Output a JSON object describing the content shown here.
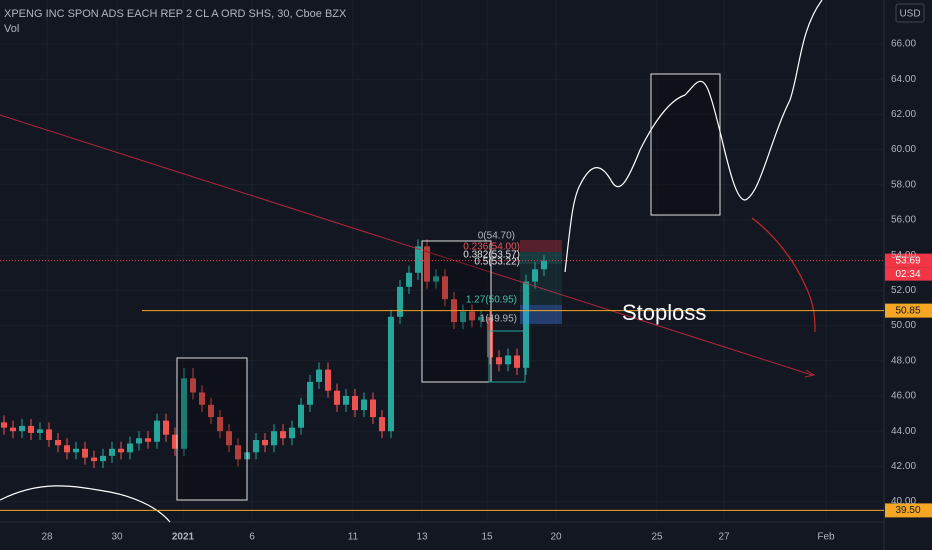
{
  "header": {
    "title": "XPENG INC SPON ADS EACH REP 2 CL A ORD SHS, 30, Cboe BZX",
    "indicator": "Vol",
    "currency": "USD"
  },
  "chart_data": {
    "type": "candlestick",
    "up_color": "#26a69a",
    "down_color": "#ef5350",
    "ylim": [
      38.84,
      68.5
    ],
    "yticks": [
      {
        "value": 40,
        "label": "40.00"
      },
      {
        "value": 42,
        "label": "42.00"
      },
      {
        "value": 44,
        "label": "44.00"
      },
      {
        "value": 46,
        "label": "46.00"
      },
      {
        "value": 48,
        "label": "48.00"
      },
      {
        "value": 50,
        "label": "50.00"
      },
      {
        "value": 52,
        "label": "52.00"
      },
      {
        "value": 54,
        "label": "54.00"
      },
      {
        "value": 56,
        "label": "56.00"
      },
      {
        "value": 58,
        "label": "58.00"
      },
      {
        "value": 60,
        "label": "60.00"
      },
      {
        "value": 62,
        "label": "62.00"
      },
      {
        "value": 64,
        "label": "64.00"
      },
      {
        "value": 66,
        "label": "66.00"
      }
    ],
    "x_labels": [
      "28",
      "30",
      "2021",
      "6",
      "11",
      "13",
      "15",
      "20",
      "25",
      "27",
      "Feb"
    ],
    "candles": [
      [
        44.5,
        44.9,
        43.8,
        44.2
      ],
      [
        44.2,
        44.6,
        43.6,
        44.0
      ],
      [
        44.0,
        44.7,
        43.6,
        44.3
      ],
      [
        44.3,
        44.7,
        43.5,
        43.9
      ],
      [
        43.9,
        44.5,
        43.5,
        44.1
      ],
      [
        44.1,
        44.5,
        43.1,
        43.5
      ],
      [
        43.5,
        43.9,
        42.8,
        43.2
      ],
      [
        43.2,
        43.6,
        42.4,
        42.8
      ],
      [
        42.8,
        43.4,
        42.4,
        43.0
      ],
      [
        43.0,
        43.4,
        42.1,
        42.5
      ],
      [
        42.5,
        42.9,
        41.9,
        42.3
      ],
      [
        42.3,
        43.0,
        41.9,
        42.6
      ],
      [
        42.6,
        43.4,
        42.2,
        43.0
      ],
      [
        43.0,
        43.4,
        42.4,
        42.8
      ],
      [
        42.8,
        43.7,
        42.4,
        43.3
      ],
      [
        43.3,
        44.0,
        42.9,
        43.6
      ],
      [
        43.6,
        44.0,
        43.0,
        43.4
      ],
      [
        43.4,
        45.0,
        43.0,
        44.6
      ],
      [
        44.6,
        45.0,
        43.4,
        43.8
      ],
      [
        43.8,
        44.2,
        42.6,
        43.0
      ],
      [
        43.0,
        47.6,
        42.6,
        47.0
      ],
      [
        47.0,
        47.6,
        45.8,
        46.2
      ],
      [
        46.2,
        46.6,
        45.1,
        45.5
      ],
      [
        45.5,
        45.9,
        44.4,
        44.8
      ],
      [
        44.8,
        45.2,
        43.6,
        44.0
      ],
      [
        44.0,
        44.4,
        42.8,
        43.2
      ],
      [
        43.2,
        43.6,
        42.0,
        42.4
      ],
      [
        42.4,
        43.2,
        42.0,
        42.8
      ],
      [
        42.8,
        43.9,
        42.4,
        43.5
      ],
      [
        43.5,
        43.9,
        42.8,
        43.2
      ],
      [
        43.2,
        44.4,
        42.8,
        44.0
      ],
      [
        44.0,
        44.4,
        43.2,
        43.6
      ],
      [
        43.6,
        44.6,
        43.2,
        44.2
      ],
      [
        44.2,
        45.9,
        43.8,
        45.5
      ],
      [
        45.5,
        47.2,
        45.1,
        46.8
      ],
      [
        46.8,
        47.9,
        46.4,
        47.5
      ],
      [
        47.5,
        47.9,
        45.9,
        46.3
      ],
      [
        46.3,
        46.7,
        45.1,
        45.5
      ],
      [
        45.5,
        46.4,
        45.1,
        46.0
      ],
      [
        46.0,
        46.4,
        44.8,
        45.2
      ],
      [
        45.2,
        46.2,
        44.8,
        45.8
      ],
      [
        45.8,
        46.2,
        44.4,
        44.8
      ],
      [
        44.8,
        45.2,
        43.6,
        44.0
      ],
      [
        44.0,
        50.9,
        43.6,
        50.5
      ],
      [
        50.5,
        52.6,
        50.1,
        52.2
      ],
      [
        52.2,
        53.4,
        51.8,
        53.0
      ],
      [
        53.0,
        54.9,
        52.6,
        54.5
      ],
      [
        54.5,
        54.9,
        52.1,
        52.5
      ],
      [
        52.5,
        53.2,
        52.1,
        52.8
      ],
      [
        52.8,
        53.2,
        51.1,
        51.5
      ],
      [
        51.5,
        51.9,
        49.8,
        50.2
      ],
      [
        50.2,
        51.2,
        49.8,
        50.8
      ],
      [
        50.8,
        51.2,
        49.9,
        50.3
      ],
      [
        50.3,
        50.9,
        49.9,
        50.5
      ],
      [
        50.5,
        50.9,
        47.8,
        48.2
      ],
      [
        48.2,
        48.6,
        47.4,
        47.8
      ],
      [
        47.8,
        48.7,
        47.4,
        48.3
      ],
      [
        48.3,
        48.7,
        47.2,
        47.6
      ],
      [
        47.6,
        52.9,
        47.2,
        52.5
      ],
      [
        52.5,
        53.6,
        52.1,
        53.2
      ],
      [
        53.2,
        54.0,
        52.8,
        53.69
      ]
    ],
    "price_lines": [
      {
        "value": 53.69,
        "label": "53.69",
        "color": "#f23645"
      },
      {
        "value": 50.85,
        "label": "50.85",
        "color": "#f5a623"
      },
      {
        "value": 39.5,
        "label": "39.50",
        "color": "#f5a623"
      }
    ],
    "countdown": "02:34",
    "fib_labels": [
      "0(54.70)",
      "0.236(54.00)",
      "0.382(53.57)",
      "0.5(53.22)",
      "1.27(50.95)",
      "1(49.95)"
    ],
    "annotation": "Stoploss"
  }
}
